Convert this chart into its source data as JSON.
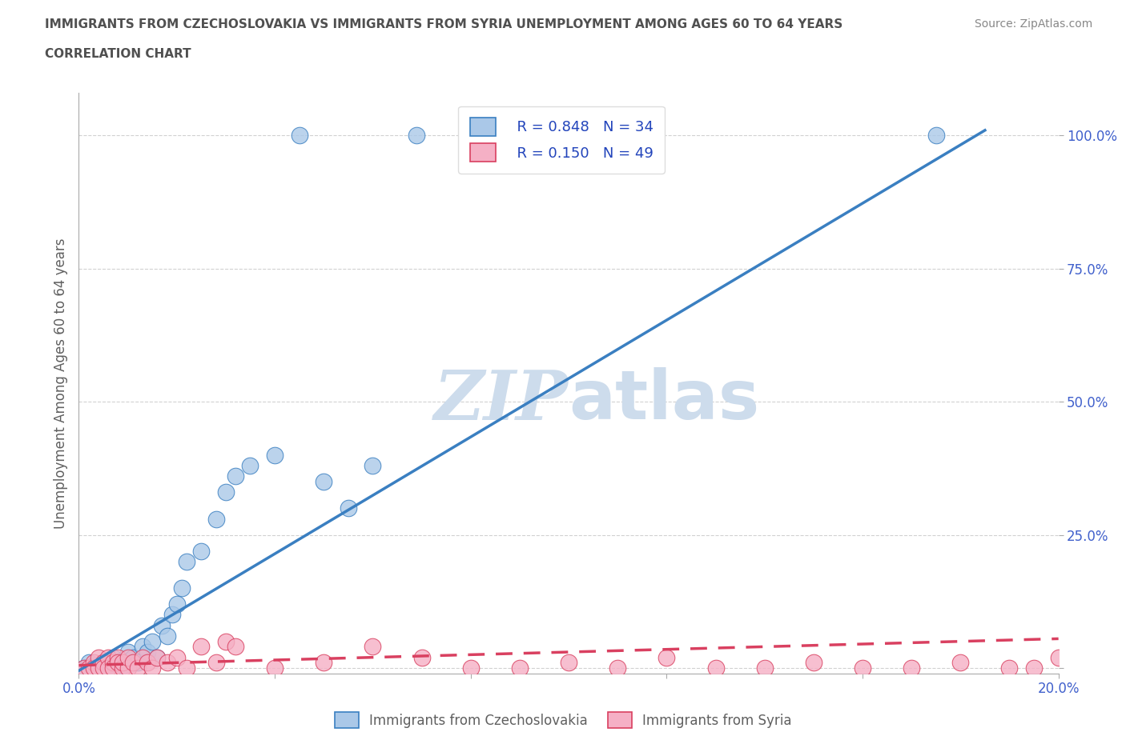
{
  "title_line1": "IMMIGRANTS FROM CZECHOSLOVAKIA VS IMMIGRANTS FROM SYRIA UNEMPLOYMENT AMONG AGES 60 TO 64 YEARS",
  "title_line2": "CORRELATION CHART",
  "source_text": "Source: ZipAtlas.com",
  "ylabel": "Unemployment Among Ages 60 to 64 years",
  "xlim": [
    0.0,
    0.2
  ],
  "ylim": [
    -0.01,
    1.08
  ],
  "xticks": [
    0.0,
    0.04,
    0.08,
    0.12,
    0.16,
    0.2
  ],
  "xticklabels": [
    "0.0%",
    "",
    "",
    "",
    "",
    "20.0%"
  ],
  "yticks": [
    0.0,
    0.25,
    0.5,
    0.75,
    1.0
  ],
  "yticklabels": [
    "",
    "25.0%",
    "50.0%",
    "75.0%",
    "100.0%"
  ],
  "legend_r1": "R = 0.848",
  "legend_n1": "N = 34",
  "legend_r2": "R = 0.150",
  "legend_n2": "N = 49",
  "legend_label1": "Immigrants from Czechoslovakia",
  "legend_label2": "Immigrants from Syria",
  "color_czech": "#aac8e8",
  "color_syria": "#f5b0c5",
  "color_trend_czech": "#3a7fc1",
  "color_trend_syria": "#d94060",
  "watermark_color": "#cddcec",
  "title_color": "#505050",
  "axis_label_color": "#606060",
  "tick_color": "#4060cc",
  "legend_text_color": "#2244bb",
  "czech_scatter_x": [
    0.001,
    0.002,
    0.003,
    0.004,
    0.005,
    0.006,
    0.007,
    0.008,
    0.009,
    0.01,
    0.011,
    0.012,
    0.013,
    0.014,
    0.015,
    0.016,
    0.017,
    0.018,
    0.019,
    0.02,
    0.021,
    0.022,
    0.025,
    0.028,
    0.03,
    0.032,
    0.035,
    0.04,
    0.045,
    0.05,
    0.055,
    0.06,
    0.069,
    0.175
  ],
  "czech_scatter_y": [
    0.0,
    0.01,
    0.005,
    0.0,
    0.01,
    0.005,
    0.02,
    0.01,
    0.005,
    0.03,
    0.02,
    0.01,
    0.04,
    0.03,
    0.05,
    0.02,
    0.08,
    0.06,
    0.1,
    0.12,
    0.15,
    0.2,
    0.22,
    0.28,
    0.33,
    0.36,
    0.38,
    0.4,
    1.0,
    0.35,
    0.3,
    0.38,
    1.0,
    1.0
  ],
  "syria_scatter_x": [
    0.001,
    0.002,
    0.003,
    0.003,
    0.004,
    0.004,
    0.005,
    0.005,
    0.006,
    0.006,
    0.007,
    0.007,
    0.008,
    0.008,
    0.009,
    0.009,
    0.01,
    0.01,
    0.011,
    0.012,
    0.013,
    0.014,
    0.015,
    0.016,
    0.018,
    0.02,
    0.022,
    0.025,
    0.028,
    0.03,
    0.032,
    0.04,
    0.05,
    0.06,
    0.07,
    0.08,
    0.09,
    0.1,
    0.11,
    0.12,
    0.13,
    0.14,
    0.15,
    0.16,
    0.17,
    0.18,
    0.19,
    0.195,
    0.2
  ],
  "syria_scatter_y": [
    0.0,
    0.0,
    0.01,
    0.0,
    0.02,
    0.0,
    0.01,
    0.0,
    0.02,
    0.0,
    0.01,
    0.0,
    0.02,
    0.01,
    0.0,
    0.01,
    0.0,
    0.02,
    0.01,
    0.0,
    0.02,
    0.01,
    0.0,
    0.02,
    0.01,
    0.02,
    0.0,
    0.04,
    0.01,
    0.05,
    0.04,
    0.0,
    0.01,
    0.04,
    0.02,
    0.0,
    0.0,
    0.01,
    0.0,
    0.02,
    0.0,
    0.0,
    0.01,
    0.0,
    0.0,
    0.01,
    0.0,
    0.0,
    0.02
  ],
  "czech_trend_x": [
    0.0,
    0.185
  ],
  "czech_trend_y": [
    -0.005,
    1.01
  ],
  "syria_trend_x": [
    0.0,
    0.2
  ],
  "syria_trend_y": [
    0.005,
    0.055
  ]
}
